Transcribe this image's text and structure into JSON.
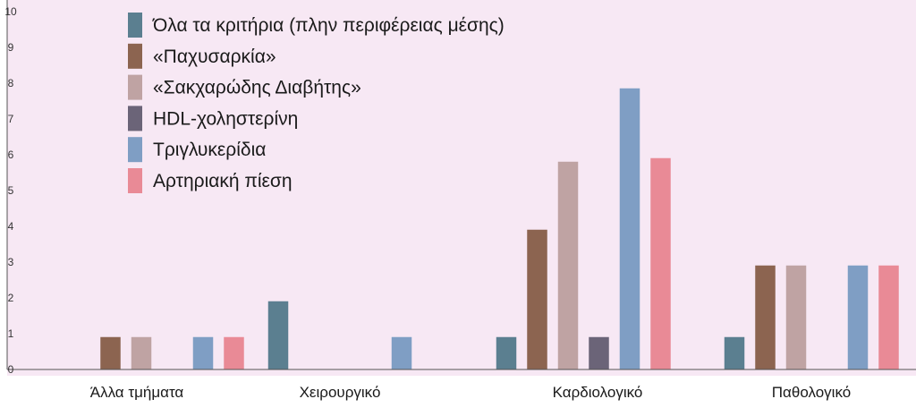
{
  "chart_data": {
    "type": "bar",
    "categories": [
      "Άλλα τμήματα",
      "Χειρουργικό",
      "Καρδιολογικό",
      "Παθολογικό"
    ],
    "series": [
      {
        "name": "Όλα τα κριτήρια (πλην περιφέρειας μέσης)",
        "values": [
          0,
          1.9,
          0.9,
          0.9
        ],
        "color": "#5b7f90"
      },
      {
        "name": "«Παχυσαρκία»",
        "values": [
          0.9,
          0,
          3.9,
          2.9
        ],
        "color": "#8c6450"
      },
      {
        "name": "«Σακχαρώδης Διαβήτης»",
        "values": [
          0.9,
          0,
          5.8,
          2.9
        ],
        "color": "#bfa3a3"
      },
      {
        "name": "HDL-χοληστερίνη",
        "values": [
          0,
          0,
          0.9,
          0
        ],
        "color": "#6b6478"
      },
      {
        "name": "Τριγλυκερίδια",
        "values": [
          0.9,
          0.9,
          7.85,
          2.9
        ],
        "color": "#7f9ec4"
      },
      {
        "name": "Αρτηριακή πίεση",
        "values": [
          0.9,
          0,
          5.9,
          2.9
        ],
        "color": "#e98a96"
      }
    ],
    "y_ticks": [
      "0",
      "1",
      "2",
      "3",
      "4",
      "5",
      "6",
      "7",
      "8",
      "9",
      "10"
    ],
    "ylim": [
      0,
      10
    ],
    "legend_position": "top-left",
    "grid": false,
    "background": "#f7e8f4"
  }
}
